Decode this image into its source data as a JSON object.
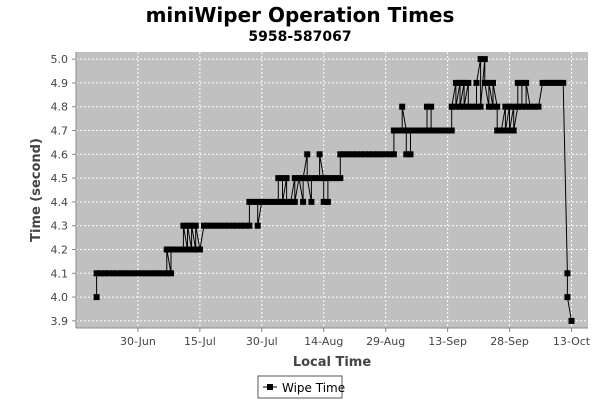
{
  "chart_data": {
    "type": "line",
    "title": "miniWiper Operation Times",
    "subtitle": "5958-587067",
    "xlabel": "Local Time",
    "ylabel": "Time (second)",
    "ylim": [
      3.87,
      5.03
    ],
    "y_ticks": [
      "3.9",
      "4.0",
      "4.1",
      "4.2",
      "4.3",
      "4.4",
      "4.5",
      "4.6",
      "4.7",
      "4.8",
      "4.9",
      "5.0"
    ],
    "x_ticks": [
      "30-Jun",
      "15-Jul",
      "30-Jul",
      "14-Aug",
      "29-Aug",
      "13-Sep",
      "28-Sep",
      "13-Oct"
    ],
    "grid": true,
    "legend_position": "bottom",
    "plot_background": "#c0c0c0",
    "series_color": "#000000",
    "series": [
      {
        "name": "Wipe Time",
        "marker": "square",
        "points": [
          [
            "Jun 20",
            4.0
          ],
          [
            "Jun 20",
            4.1
          ],
          [
            "Jun 21",
            4.1
          ],
          [
            "Jun 22",
            4.1
          ],
          [
            "Jun 23",
            4.1
          ],
          [
            "Jun 24",
            4.1
          ],
          [
            "Jun 25",
            4.1
          ],
          [
            "Jun 26",
            4.1
          ],
          [
            "Jun 27",
            4.1
          ],
          [
            "Jun 28",
            4.1
          ],
          [
            "Jun 29",
            4.1
          ],
          [
            "Jun 30",
            4.1
          ],
          [
            "Jul 1",
            4.1
          ],
          [
            "Jul 2",
            4.1
          ],
          [
            "Jul 3",
            4.1
          ],
          [
            "Jul 4",
            4.1
          ],
          [
            "Jul 5",
            4.1
          ],
          [
            "Jul 6",
            4.1
          ],
          [
            "Jul 7",
            4.1
          ],
          [
            "Jul 7",
            4.2
          ],
          [
            "Jul 8",
            4.1
          ],
          [
            "Jul 8",
            4.2
          ],
          [
            "Jul 9",
            4.2
          ],
          [
            "Jul 10",
            4.2
          ],
          [
            "Jul 11",
            4.2
          ],
          [
            "Jul 11",
            4.3
          ],
          [
            "Jul 12",
            4.2
          ],
          [
            "Jul 12",
            4.3
          ],
          [
            "Jul 13",
            4.2
          ],
          [
            "Jul 13",
            4.3
          ],
          [
            "Jul 14",
            4.2
          ],
          [
            "Jul 14",
            4.3
          ],
          [
            "Jul 15",
            4.2
          ],
          [
            "Jul 16",
            4.3
          ],
          [
            "Jul 17",
            4.3
          ],
          [
            "Jul 18",
            4.3
          ],
          [
            "Jul 19",
            4.3
          ],
          [
            "Jul 20",
            4.3
          ],
          [
            "Jul 21",
            4.3
          ],
          [
            "Jul 22",
            4.3
          ],
          [
            "Jul 23",
            4.3
          ],
          [
            "Jul 24",
            4.3
          ],
          [
            "Jul 25",
            4.3
          ],
          [
            "Jul 26",
            4.3
          ],
          [
            "Jul 27",
            4.3
          ],
          [
            "Jul 27",
            4.4
          ],
          [
            "Jul 28",
            4.4
          ],
          [
            "Jul 29",
            4.4
          ],
          [
            "Jul 29",
            4.3
          ],
          [
            "Jul 30",
            4.4
          ],
          [
            "Jul 31",
            4.4
          ],
          [
            "Aug 1",
            4.4
          ],
          [
            "Aug 2",
            4.4
          ],
          [
            "Aug 3",
            4.4
          ],
          [
            "Aug 3",
            4.5
          ],
          [
            "Aug 4",
            4.5
          ],
          [
            "Aug 4",
            4.4
          ],
          [
            "Aug 5",
            4.5
          ],
          [
            "Aug 5",
            4.4
          ],
          [
            "Aug 6",
            4.4
          ],
          [
            "Aug 7",
            4.5
          ],
          [
            "Aug 7",
            4.4
          ],
          [
            "Aug 8",
            4.5
          ],
          [
            "Aug 9",
            4.4
          ],
          [
            "Aug 9",
            4.5
          ],
          [
            "Aug 10",
            4.6
          ],
          [
            "Aug 10",
            4.5
          ],
          [
            "Aug 11",
            4.4
          ],
          [
            "Aug 11",
            4.5
          ],
          [
            "Aug 12",
            4.5
          ],
          [
            "Aug 13",
            4.5
          ],
          [
            "Aug 13",
            4.6
          ],
          [
            "Aug 14",
            4.5
          ],
          [
            "Aug 14",
            4.4
          ],
          [
            "Aug 15",
            4.4
          ],
          [
            "Aug 15",
            4.5
          ],
          [
            "Aug 16",
            4.5
          ],
          [
            "Aug 17",
            4.5
          ],
          [
            "Aug 18",
            4.5
          ],
          [
            "Aug 18",
            4.6
          ],
          [
            "Aug 19",
            4.6
          ],
          [
            "Aug 20",
            4.6
          ],
          [
            "Aug 21",
            4.6
          ],
          [
            "Aug 22",
            4.6
          ],
          [
            "Aug 23",
            4.6
          ],
          [
            "Aug 24",
            4.6
          ],
          [
            "Aug 25",
            4.6
          ],
          [
            "Aug 26",
            4.6
          ],
          [
            "Aug 27",
            4.6
          ],
          [
            "Aug 28",
            4.6
          ],
          [
            "Aug 29",
            4.6
          ],
          [
            "Aug 30",
            4.6
          ],
          [
            "Aug 31",
            4.6
          ],
          [
            "Aug 31",
            4.7
          ],
          [
            "Sep 1",
            4.7
          ],
          [
            "Sep 2",
            4.7
          ],
          [
            "Sep 2",
            4.8
          ],
          [
            "Sep 3",
            4.7
          ],
          [
            "Sep 3",
            4.6
          ],
          [
            "Sep 4",
            4.6
          ],
          [
            "Sep 4",
            4.7
          ],
          [
            "Sep 5",
            4.7
          ],
          [
            "Sep 6",
            4.7
          ],
          [
            "Sep 7",
            4.7
          ],
          [
            "Sep 8",
            4.7
          ],
          [
            "Sep 8",
            4.8
          ],
          [
            "Sep 9",
            4.8
          ],
          [
            "Sep 9",
            4.7
          ],
          [
            "Sep 10",
            4.7
          ],
          [
            "Sep 11",
            4.7
          ],
          [
            "Sep 12",
            4.7
          ],
          [
            "Sep 13",
            4.7
          ],
          [
            "Sep 14",
            4.7
          ],
          [
            "Sep 14",
            4.8
          ],
          [
            "Sep 15",
            4.9
          ],
          [
            "Sep 15",
            4.8
          ],
          [
            "Sep 16",
            4.9
          ],
          [
            "Sep 16",
            4.8
          ],
          [
            "Sep 17",
            4.9
          ],
          [
            "Sep 17",
            4.8
          ],
          [
            "Sep 18",
            4.9
          ],
          [
            "Sep 18",
            4.8
          ],
          [
            "Sep 19",
            4.8
          ],
          [
            "Sep 20",
            4.8
          ],
          [
            "Sep 20",
            4.9
          ],
          [
            "Sep 21",
            5.0
          ],
          [
            "Sep 21",
            4.8
          ],
          [
            "Sep 22",
            5.0
          ],
          [
            "Sep 22",
            4.9
          ],
          [
            "Sep 23",
            4.8
          ],
          [
            "Sep 23",
            4.9
          ],
          [
            "Sep 24",
            4.8
          ],
          [
            "Sep 24",
            4.9
          ],
          [
            "Sep 25",
            4.8
          ],
          [
            "Sep 25",
            4.7
          ],
          [
            "Sep 26",
            4.7
          ],
          [
            "Sep 27",
            4.8
          ],
          [
            "Sep 27",
            4.7
          ],
          [
            "Sep 28",
            4.8
          ],
          [
            "Sep 28",
            4.7
          ],
          [
            "Sep 29",
            4.8
          ],
          [
            "Sep 29",
            4.7
          ],
          [
            "Sep 30",
            4.8
          ],
          [
            "Sep 30",
            4.9
          ],
          [
            "Oct 1",
            4.9
          ],
          [
            "Oct 1",
            4.8
          ],
          [
            "Oct 2",
            4.8
          ],
          [
            "Oct 2",
            4.9
          ],
          [
            "Oct 3",
            4.8
          ],
          [
            "Oct 4",
            4.8
          ],
          [
            "Oct 5",
            4.8
          ],
          [
            "Oct 6",
            4.9
          ],
          [
            "Oct 7",
            4.9
          ],
          [
            "Oct 8",
            4.9
          ],
          [
            "Oct 9",
            4.9
          ],
          [
            "Oct 10",
            4.9
          ],
          [
            "Oct 11",
            4.9
          ],
          [
            "Oct 12",
            4.1
          ],
          [
            "Oct 12",
            4.0
          ],
          [
            "Oct 13",
            3.9
          ]
        ]
      }
    ]
  }
}
